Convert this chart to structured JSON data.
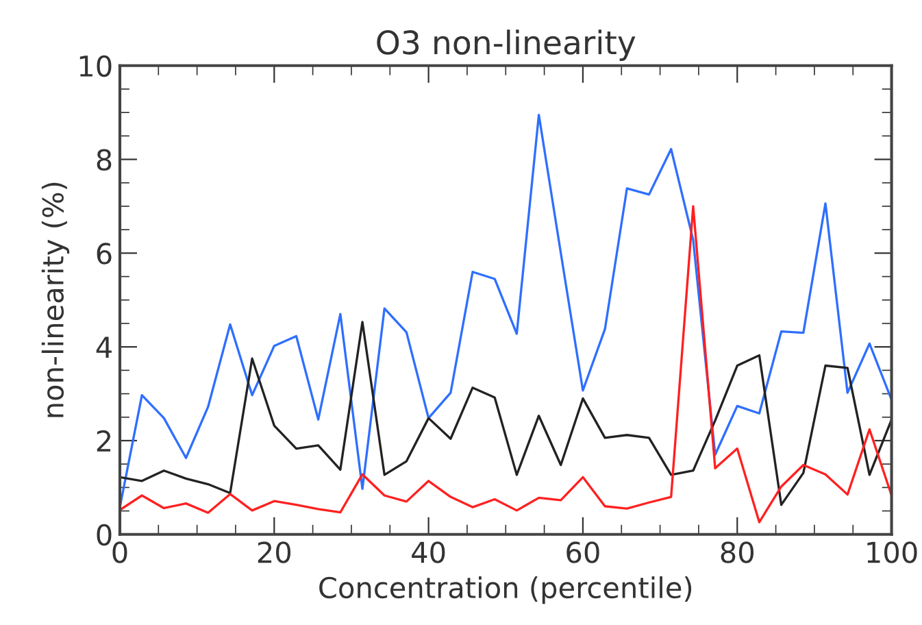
{
  "chart_data": {
    "type": "line",
    "title": "O3 non-linearity",
    "xlabel": "Concentration (percentile)",
    "ylabel": "non-linearity (%)",
    "x": [
      0,
      2.86,
      5.71,
      8.57,
      11.43,
      14.29,
      17.14,
      20,
      22.86,
      25.71,
      28.57,
      31.43,
      34.29,
      37.14,
      40,
      42.86,
      45.71,
      48.57,
      51.43,
      54.29,
      57.14,
      60,
      62.86,
      65.71,
      68.57,
      71.43,
      74.29,
      77.14,
      80,
      82.86,
      85.71,
      88.57,
      91.43,
      94.29,
      97.14,
      100
    ],
    "series": [
      {
        "color": "#2f6fff",
        "values": [
          0.58,
          2.97,
          2.48,
          1.63,
          2.72,
          4.48,
          2.97,
          4.02,
          4.23,
          2.45,
          4.7,
          0.97,
          4.82,
          4.31,
          2.48,
          3.02,
          5.6,
          5.45,
          4.28,
          8.95,
          6.0,
          3.07,
          4.38,
          7.38,
          7.25,
          8.22,
          6.28,
          1.7,
          2.74,
          2.58,
          4.33,
          4.3,
          7.06,
          3.02,
          4.07,
          2.87
        ]
      },
      {
        "color": "#222222",
        "values": [
          1.22,
          1.14,
          1.36,
          1.19,
          1.07,
          0.88,
          3.75,
          2.32,
          1.83,
          1.9,
          1.38,
          4.53,
          1.27,
          1.56,
          2.48,
          2.04,
          3.13,
          2.92,
          1.27,
          2.53,
          1.48,
          2.9,
          2.06,
          2.12,
          2.06,
          1.27,
          1.36,
          2.43,
          3.6,
          3.82,
          0.63,
          1.31,
          3.6,
          3.55,
          1.27,
          2.45
        ]
      },
      {
        "color": "#ff2020",
        "values": [
          0.52,
          0.83,
          0.56,
          0.66,
          0.46,
          0.86,
          0.51,
          0.71,
          0.63,
          0.54,
          0.47,
          1.28,
          0.83,
          0.7,
          1.14,
          0.8,
          0.58,
          0.75,
          0.51,
          0.78,
          0.73,
          1.22,
          0.6,
          0.55,
          0.68,
          0.8,
          7.0,
          1.41,
          1.83,
          0.26,
          1.02,
          1.48,
          1.28,
          0.85,
          2.24,
          0.83
        ]
      }
    ],
    "xlim": [
      0,
      100
    ],
    "xticks": [
      0,
      20,
      40,
      60,
      80,
      100
    ],
    "ylim": [
      0,
      10
    ],
    "yticks": [
      0,
      2,
      4,
      6,
      8,
      10
    ],
    "grid": false,
    "legend": false,
    "marker": "none",
    "line_style": "solid"
  }
}
